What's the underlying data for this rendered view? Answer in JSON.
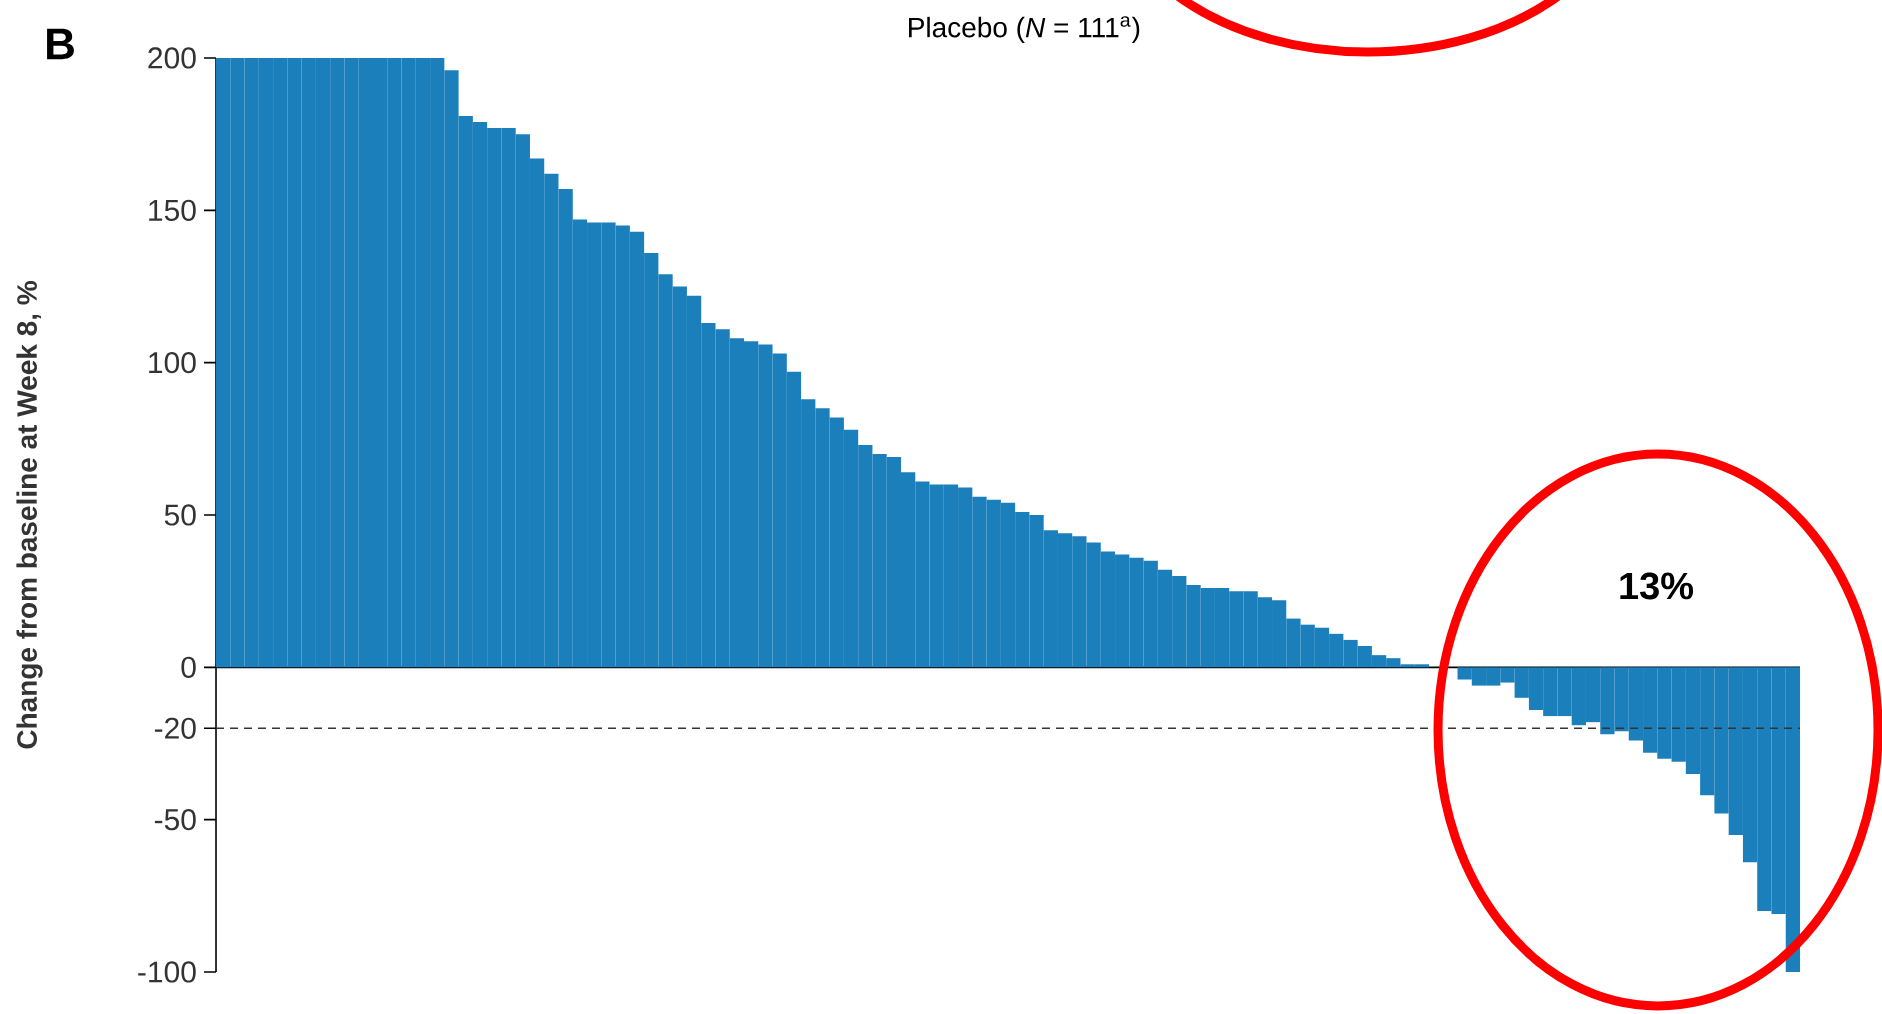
{
  "chart_data": {
    "type": "bar",
    "title": "Placebo (*N* = 111$^{a}$)",
    "ylabel": "Change from baseline at Week 8, %",
    "annotations": [
      "B",
      "13%"
    ],
    "categories": [
      null,
      null,
      null,
      null,
      null,
      null,
      null,
      null,
      null,
      null,
      null,
      null,
      null,
      null,
      null,
      null,
      null,
      null,
      null,
      null,
      null,
      null,
      null,
      null,
      null,
      null,
      null,
      null,
      null,
      null,
      null,
      null,
      null,
      null,
      null,
      null,
      null,
      null,
      null,
      null,
      null,
      null,
      null,
      null,
      null,
      null,
      null,
      null,
      null,
      null,
      null,
      null,
      null,
      null,
      null,
      null,
      null,
      null,
      null,
      null,
      null,
      null,
      null,
      null,
      null,
      null,
      null,
      null,
      null,
      null,
      null,
      null,
      null,
      null,
      null,
      null,
      null,
      null,
      null,
      null,
      null,
      null,
      null,
      null,
      null,
      null,
      null,
      null,
      null,
      null,
      null,
      null,
      null,
      null,
      null,
      null,
      null,
      null,
      null,
      null,
      null,
      null,
      null,
      null,
      null,
      null,
      null,
      null,
      null,
      null,
      null
    ],
    "values": [
      200,
      200,
      200,
      200,
      200,
      200,
      200,
      200,
      200,
      200,
      200,
      200,
      200,
      200,
      200,
      200,
      196,
      181,
      179,
      177,
      177,
      175,
      167,
      162,
      157,
      147,
      146,
      146,
      145,
      143,
      136,
      129,
      125,
      122,
      113,
      111,
      108,
      107,
      106,
      103,
      97,
      88,
      85,
      82,
      78,
      73,
      70,
      69,
      64,
      61,
      60,
      60,
      59,
      56,
      55,
      54,
      51,
      50,
      45,
      44,
      43,
      41,
      38,
      37,
      36,
      35,
      32,
      30,
      27,
      26,
      26,
      25,
      25,
      23,
      22,
      16,
      14,
      13,
      11,
      9,
      7,
      4,
      3,
      1,
      1,
      0,
      0,
      -4,
      -6,
      -6,
      -5,
      -10,
      -14,
      -16,
      -16,
      -19,
      -18,
      -22,
      -21,
      -24,
      -28,
      -30,
      -31,
      -35,
      -42,
      -48,
      -55,
      -64,
      -80,
      -81,
      -100
    ],
    "color": "#1b7fbc",
    "ylim": [
      -100,
      200
    ],
    "yticks": [
      -100,
      -50,
      -20,
      0,
      50,
      100,
      150,
      200
    ],
    "tick_labels": "y",
    "ref_lines": [
      {
        "axis": "y",
        "value": -20,
        "color": "#333333",
        "line_style": "dashed"
      }
    ]
  }
}
